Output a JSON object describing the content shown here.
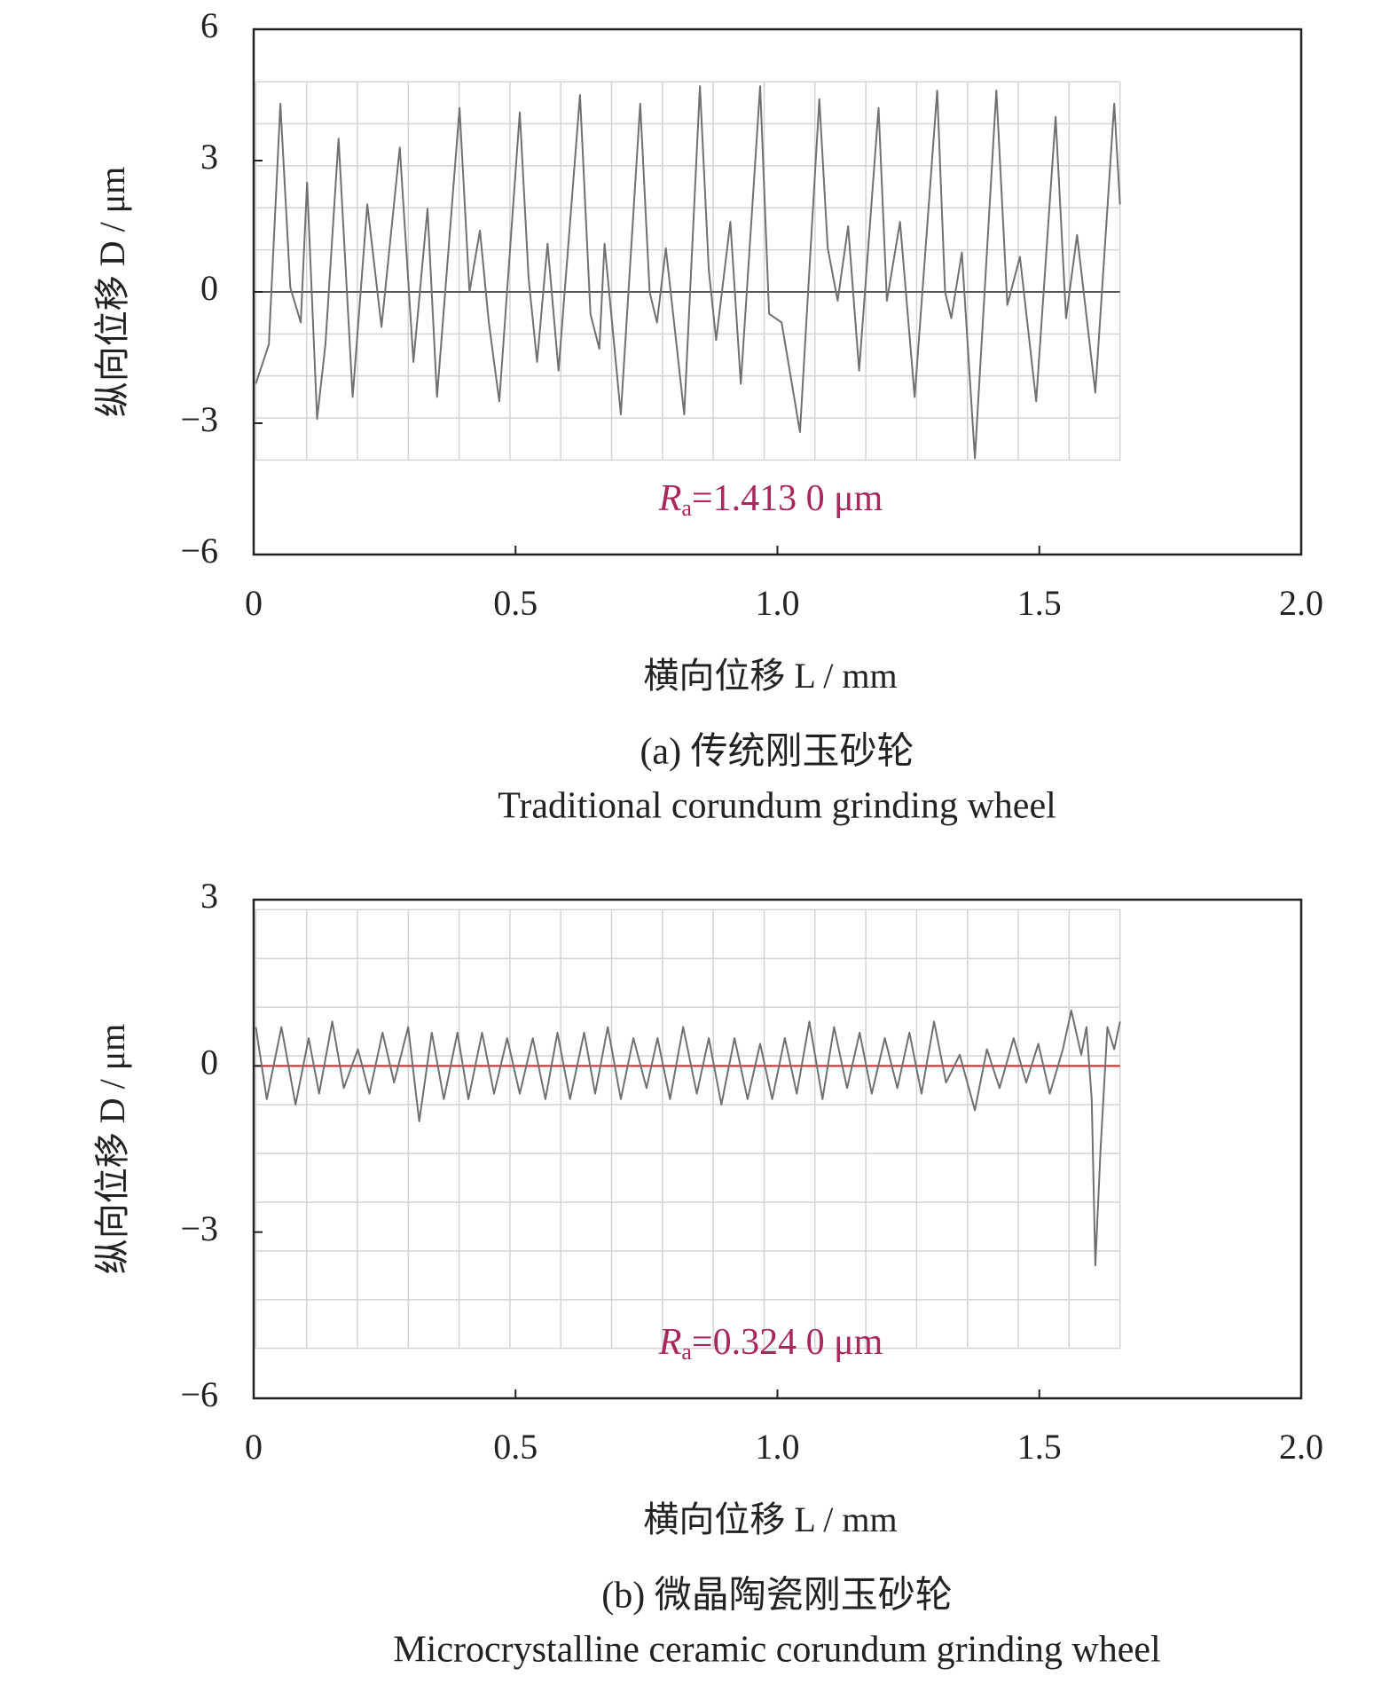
{
  "chart_data": [
    {
      "type": "line",
      "y_label": "纵向位移 D / μm",
      "x_label": "横向位移 L / mm",
      "caption": [
        "(a) 传统刚玉砂轮",
        "Traditional corundum grinding wheel"
      ],
      "annotation": {
        "symbol": "R",
        "subscript": "a",
        "text": "=1.413 0 μm"
      },
      "color": "#707070",
      "zero_line_color": "#555555",
      "annotation_color": "#a8285c",
      "xlim": [
        0,
        2
      ],
      "ylim": [
        -6,
        6
      ],
      "xticks": [
        0,
        0.5,
        {
          "value": 1,
          "label": "1.0"
        },
        1.5,
        {
          "value": 2,
          "label": "2.0"
        }
      ],
      "yticks": [
        {
          "value": -6,
          "label": "−6"
        },
        {
          "value": -3,
          "label": "−3"
        },
        0,
        3,
        6
      ],
      "x": [
        0.004,
        0.029,
        0.051,
        0.07,
        0.09,
        0.102,
        0.121,
        0.137,
        0.162,
        0.189,
        0.217,
        0.244,
        0.279,
        0.305,
        0.332,
        0.35,
        0.393,
        0.412,
        0.432,
        0.449,
        0.469,
        0.508,
        0.525,
        0.541,
        0.561,
        0.582,
        0.623,
        0.643,
        0.66,
        0.67,
        0.701,
        0.738,
        0.756,
        0.77,
        0.787,
        0.822,
        0.852,
        0.869,
        0.883,
        0.91,
        0.93,
        0.967,
        0.984,
        1.008,
        1.043,
        1.08,
        1.096,
        1.115,
        1.135,
        1.156,
        1.193,
        1.209,
        1.234,
        1.262,
        1.305,
        1.32,
        1.332,
        1.352,
        1.377,
        1.418,
        1.439,
        1.463,
        1.494,
        1.531,
        1.551,
        1.572,
        1.607,
        1.643,
        1.654
      ],
      "values": [
        -2.1,
        -1.2,
        4.3,
        0.1,
        -0.7,
        2.5,
        -2.9,
        -1.2,
        3.5,
        -2.4,
        2.0,
        -0.8,
        3.3,
        -1.6,
        1.9,
        -2.4,
        4.2,
        0,
        1.4,
        -0.7,
        -2.5,
        4.1,
        0.3,
        -1.6,
        1.1,
        -1.8,
        4.5,
        -0.5,
        -1.3,
        1.1,
        -2.8,
        4.3,
        0,
        -0.7,
        1.0,
        -2.8,
        4.7,
        0.5,
        -1.1,
        1.6,
        -2.1,
        4.7,
        -0.5,
        -0.7,
        -3.2,
        4.4,
        1.0,
        -0.2,
        1.5,
        -1.8,
        4.2,
        -0.2,
        1.6,
        -2.4,
        4.6,
        0,
        -0.6,
        0.9,
        -3.8,
        4.6,
        -0.3,
        0.8,
        -2.5,
        4.0,
        -0.6,
        1.3,
        -2.3,
        4.3,
        2.0
      ]
    },
    {
      "type": "line",
      "y_label": "纵向位移 D / μm",
      "x_label": "横向位移 L / mm",
      "caption": [
        "(b) 微晶陶瓷刚玉砂轮",
        "Microcrystalline ceramic corundum grinding wheel"
      ],
      "annotation": {
        "symbol": "R",
        "subscript": "a",
        "text": "=0.324 0 μm"
      },
      "color": "#707070",
      "zero_line_color": "#d0202a",
      "annotation_color": "#a8285c",
      "xlim": [
        0,
        2
      ],
      "ylim": [
        -6,
        3
      ],
      "xticks": [
        0,
        0.5,
        {
          "value": 1,
          "label": "1.0"
        },
        1.5,
        {
          "value": 2,
          "label": "2.0"
        }
      ],
      "yticks": [
        {
          "value": -6,
          "label": "−6"
        },
        {
          "value": -3,
          "label": "−3"
        },
        0,
        3
      ],
      "x": [
        0.004,
        0.025,
        0.053,
        0.08,
        0.105,
        0.125,
        0.15,
        0.172,
        0.199,
        0.221,
        0.246,
        0.268,
        0.295,
        0.316,
        0.34,
        0.363,
        0.389,
        0.41,
        0.436,
        0.459,
        0.484,
        0.508,
        0.533,
        0.557,
        0.58,
        0.604,
        0.631,
        0.652,
        0.676,
        0.701,
        0.725,
        0.75,
        0.771,
        0.795,
        0.82,
        0.846,
        0.869,
        0.893,
        0.918,
        0.943,
        0.967,
        0.99,
        1.014,
        1.037,
        1.061,
        1.086,
        1.108,
        1.133,
        1.157,
        1.18,
        1.205,
        1.229,
        1.252,
        1.275,
        1.299,
        1.322,
        1.348,
        1.377,
        1.4,
        1.424,
        1.451,
        1.475,
        1.498,
        1.52,
        1.545,
        1.561,
        1.58,
        1.59,
        1.6,
        1.607,
        1.617,
        1.63,
        1.643,
        1.654
      ],
      "values": [
        0.7,
        -0.6,
        0.7,
        -0.7,
        0.5,
        -0.5,
        0.8,
        -0.4,
        0.3,
        -0.5,
        0.6,
        -0.3,
        0.7,
        -1.0,
        0.6,
        -0.6,
        0.6,
        -0.6,
        0.6,
        -0.5,
        0.5,
        -0.5,
        0.5,
        -0.6,
        0.6,
        -0.6,
        0.6,
        -0.5,
        0.7,
        -0.6,
        0.5,
        -0.4,
        0.5,
        -0.6,
        0.7,
        -0.5,
        0.5,
        -0.7,
        0.5,
        -0.6,
        0.4,
        -0.6,
        0.5,
        -0.5,
        0.8,
        -0.6,
        0.7,
        -0.4,
        0.6,
        -0.5,
        0.5,
        -0.4,
        0.6,
        -0.5,
        0.8,
        -0.3,
        0.2,
        -0.8,
        0.3,
        -0.4,
        0.5,
        -0.3,
        0.4,
        -0.5,
        0.3,
        1.0,
        0.2,
        0.7,
        -0.6,
        -3.6,
        -1.5,
        0.7,
        0.3,
        0.8
      ]
    }
  ]
}
